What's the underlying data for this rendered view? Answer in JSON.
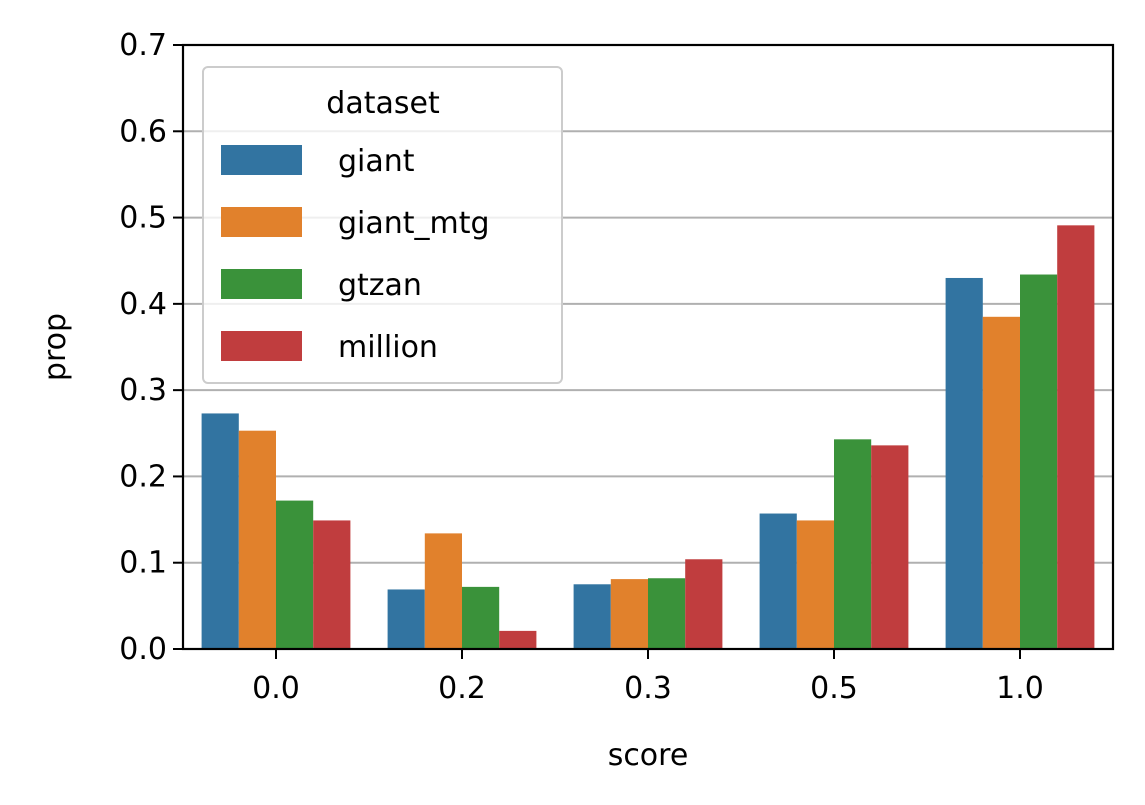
{
  "chart_data": {
    "type": "bar",
    "xlabel": "score",
    "ylabel": "prop",
    "categories": [
      "0.0",
      "0.2",
      "0.3",
      "0.5",
      "1.0"
    ],
    "ylim": [
      0.0,
      0.7
    ],
    "yticks": [
      "0.0",
      "0.1",
      "0.2",
      "0.3",
      "0.4",
      "0.5",
      "0.6",
      "0.7"
    ],
    "grid": "horizontal",
    "legend": {
      "title": "dataset",
      "placement": "top-left"
    },
    "series": [
      {
        "name": "giant",
        "color": "#3274a1",
        "values": [
          0.273,
          0.069,
          0.075,
          0.157,
          0.43
        ]
      },
      {
        "name": "giant_mtg",
        "color": "#e1812c",
        "values": [
          0.253,
          0.134,
          0.081,
          0.149,
          0.385
        ]
      },
      {
        "name": "gtzan",
        "color": "#3a923a",
        "values": [
          0.172,
          0.072,
          0.082,
          0.243,
          0.434
        ]
      },
      {
        "name": "million",
        "color": "#c03d3e",
        "values": [
          0.149,
          0.021,
          0.104,
          0.236,
          0.491
        ]
      }
    ]
  }
}
